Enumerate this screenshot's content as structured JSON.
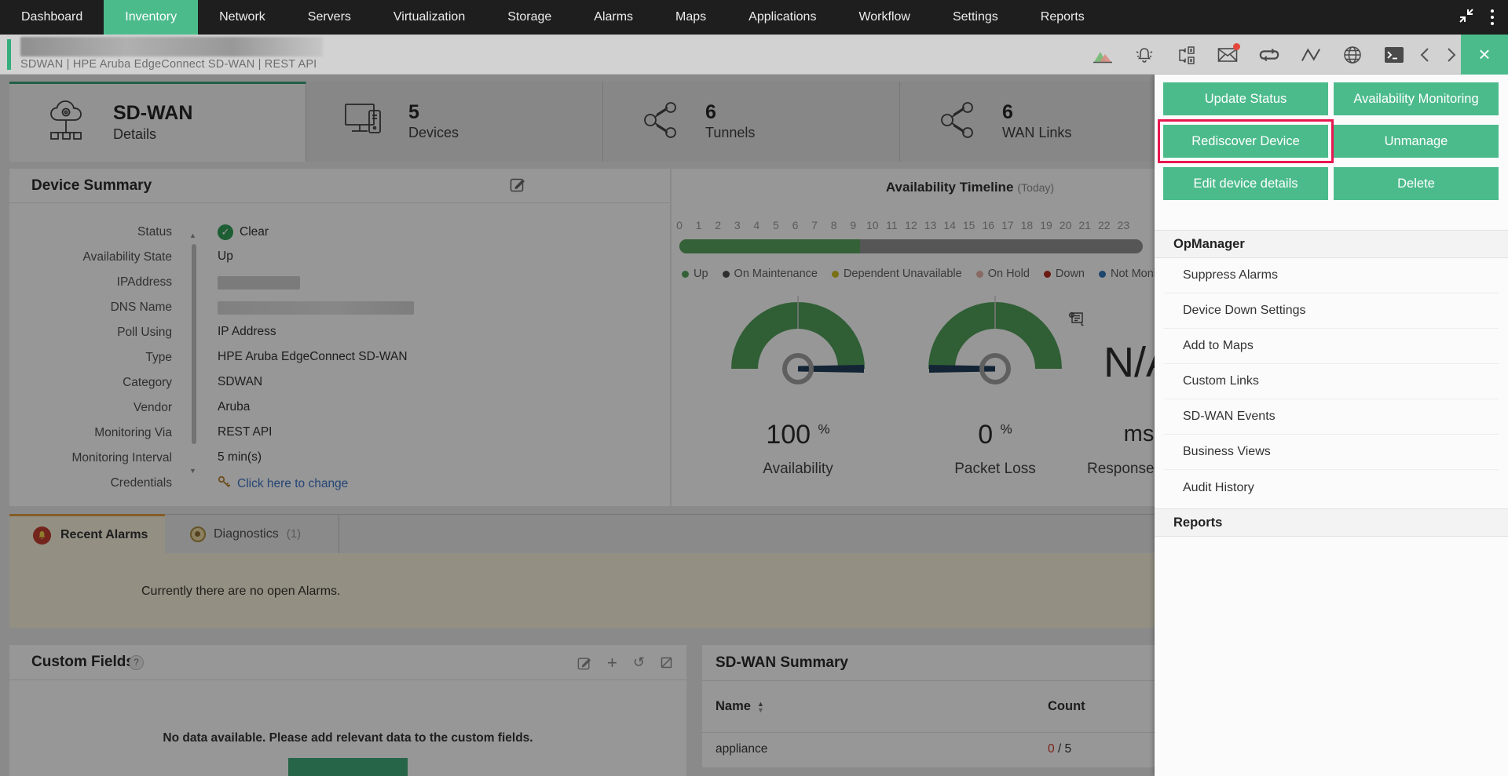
{
  "nav": {
    "items": [
      "Dashboard",
      "Inventory",
      "Network",
      "Servers",
      "Virtualization",
      "Storage",
      "Alarms",
      "Maps",
      "Applications",
      "Workflow",
      "Settings",
      "Reports"
    ],
    "active": "Inventory"
  },
  "titlebar": {
    "breadcrumb": "SDWAN | HPE Aruba EdgeConnect SD-WAN  | REST API",
    "toolbar_icons": [
      "performance-chart",
      "alarm-bell",
      "workflow-map",
      "mail",
      "sync-loop",
      "latency-graph",
      "globe",
      "terminal"
    ],
    "mail_has_badge": true,
    "close_label": "×"
  },
  "summary_cards": [
    {
      "title": "SD-WAN",
      "subtitle": "Details",
      "icon": "sdwan-cloud",
      "selected": true
    },
    {
      "title": "5",
      "subtitle": "Devices",
      "icon": "devices",
      "selected": false
    },
    {
      "title": "6",
      "subtitle": "Tunnels",
      "icon": "tunnel-link",
      "selected": false
    },
    {
      "title": "6",
      "subtitle": "WAN Links",
      "icon": "tunnel-link",
      "selected": false
    }
  ],
  "device_summary": {
    "title": "Device Summary",
    "fields": [
      {
        "label": "Status",
        "type": "status",
        "value": "Clear"
      },
      {
        "label": "Availability State",
        "type": "text",
        "value": "Up"
      },
      {
        "label": "IPAddress",
        "type": "redacted",
        "redacted_width": 105
      },
      {
        "label": "DNS Name",
        "type": "redacted",
        "redacted_width": 250
      },
      {
        "label": "Poll Using",
        "type": "text",
        "value": "IP Address"
      },
      {
        "label": "Type",
        "type": "text",
        "value": "HPE Aruba EdgeConnect SD-WAN"
      },
      {
        "label": "Category",
        "type": "text",
        "value": "SDWAN"
      },
      {
        "label": "Vendor",
        "type": "text",
        "value": "Aruba"
      },
      {
        "label": "Monitoring Via",
        "type": "text",
        "value": "REST API"
      },
      {
        "label": "Monitoring Interval",
        "type": "text",
        "value": "5 min(s)"
      },
      {
        "label": "Credentials",
        "type": "link",
        "value": "Click here to change"
      }
    ]
  },
  "availability_timeline": {
    "title": "Availability Timeline",
    "period": "(Today)",
    "hours": [
      "0",
      "1",
      "2",
      "3",
      "4",
      "5",
      "6",
      "7",
      "8",
      "9",
      "10",
      "11",
      "12",
      "13",
      "14",
      "15",
      "16",
      "17",
      "18",
      "19",
      "20",
      "21",
      "22",
      "23"
    ],
    "up_fraction": 0.39,
    "legend": [
      {
        "label": "Up",
        "color": "#55a25b"
      },
      {
        "label": "On Maintenance",
        "color": "#4a4a4a"
      },
      {
        "label": "Dependent Unavailable",
        "color": "#cdbc1e"
      },
      {
        "label": "On Hold",
        "color": "#e5b0a6"
      },
      {
        "label": "Down",
        "color": "#b5281e"
      },
      {
        "label": "Not Monitored",
        "color": "#2e74b5"
      }
    ]
  },
  "gauges": [
    {
      "value": "100",
      "unit": "%",
      "label": "Availability",
      "percent": 100
    },
    {
      "value": "0",
      "unit": "%",
      "label": "Packet Loss",
      "percent": 0
    },
    {
      "value": "N/A",
      "unit": "ms",
      "label": "Response Time",
      "percent": null
    }
  ],
  "alarm_tabs": {
    "tabs": [
      {
        "label": "Recent Alarms",
        "active": true
      },
      {
        "label": "Diagnostics",
        "count": "(1)",
        "active": false
      }
    ],
    "empty_message": "Currently there are no open Alarms."
  },
  "custom_fields": {
    "title": "Custom Fields",
    "help_badge": "?",
    "empty_message": "No data available. Please add relevant data to the custom fields."
  },
  "sdwan_summary": {
    "title": "SD-WAN Summary",
    "columns": [
      "Name",
      "Count"
    ],
    "rows": [
      {
        "name": "appliance",
        "count": "0",
        "count_total": " / 5"
      }
    ]
  },
  "action_panel": {
    "buttons": [
      "Update Status",
      "Availability Monitoring",
      "Rediscover Device",
      "Unmanage",
      "Edit device details",
      "Delete"
    ],
    "highlighted_button": "Rediscover Device",
    "sections": [
      {
        "header": "OpManager",
        "items": [
          "Suppress Alarms",
          "Device Down Settings",
          "Add to Maps",
          "Custom Links",
          "SD-WAN Events",
          "Business Views",
          "Audit History"
        ]
      },
      {
        "header": "Reports",
        "items": []
      }
    ]
  },
  "colors": {
    "brand_green": "#4cbb8c",
    "highlight_red": "#e8174f",
    "up_green": "#55a25b",
    "needle_navy": "#1d3a57",
    "active_tab_orange": "#e09c3e",
    "link_blue": "#3b73c4",
    "count_red": "#cf3224"
  }
}
